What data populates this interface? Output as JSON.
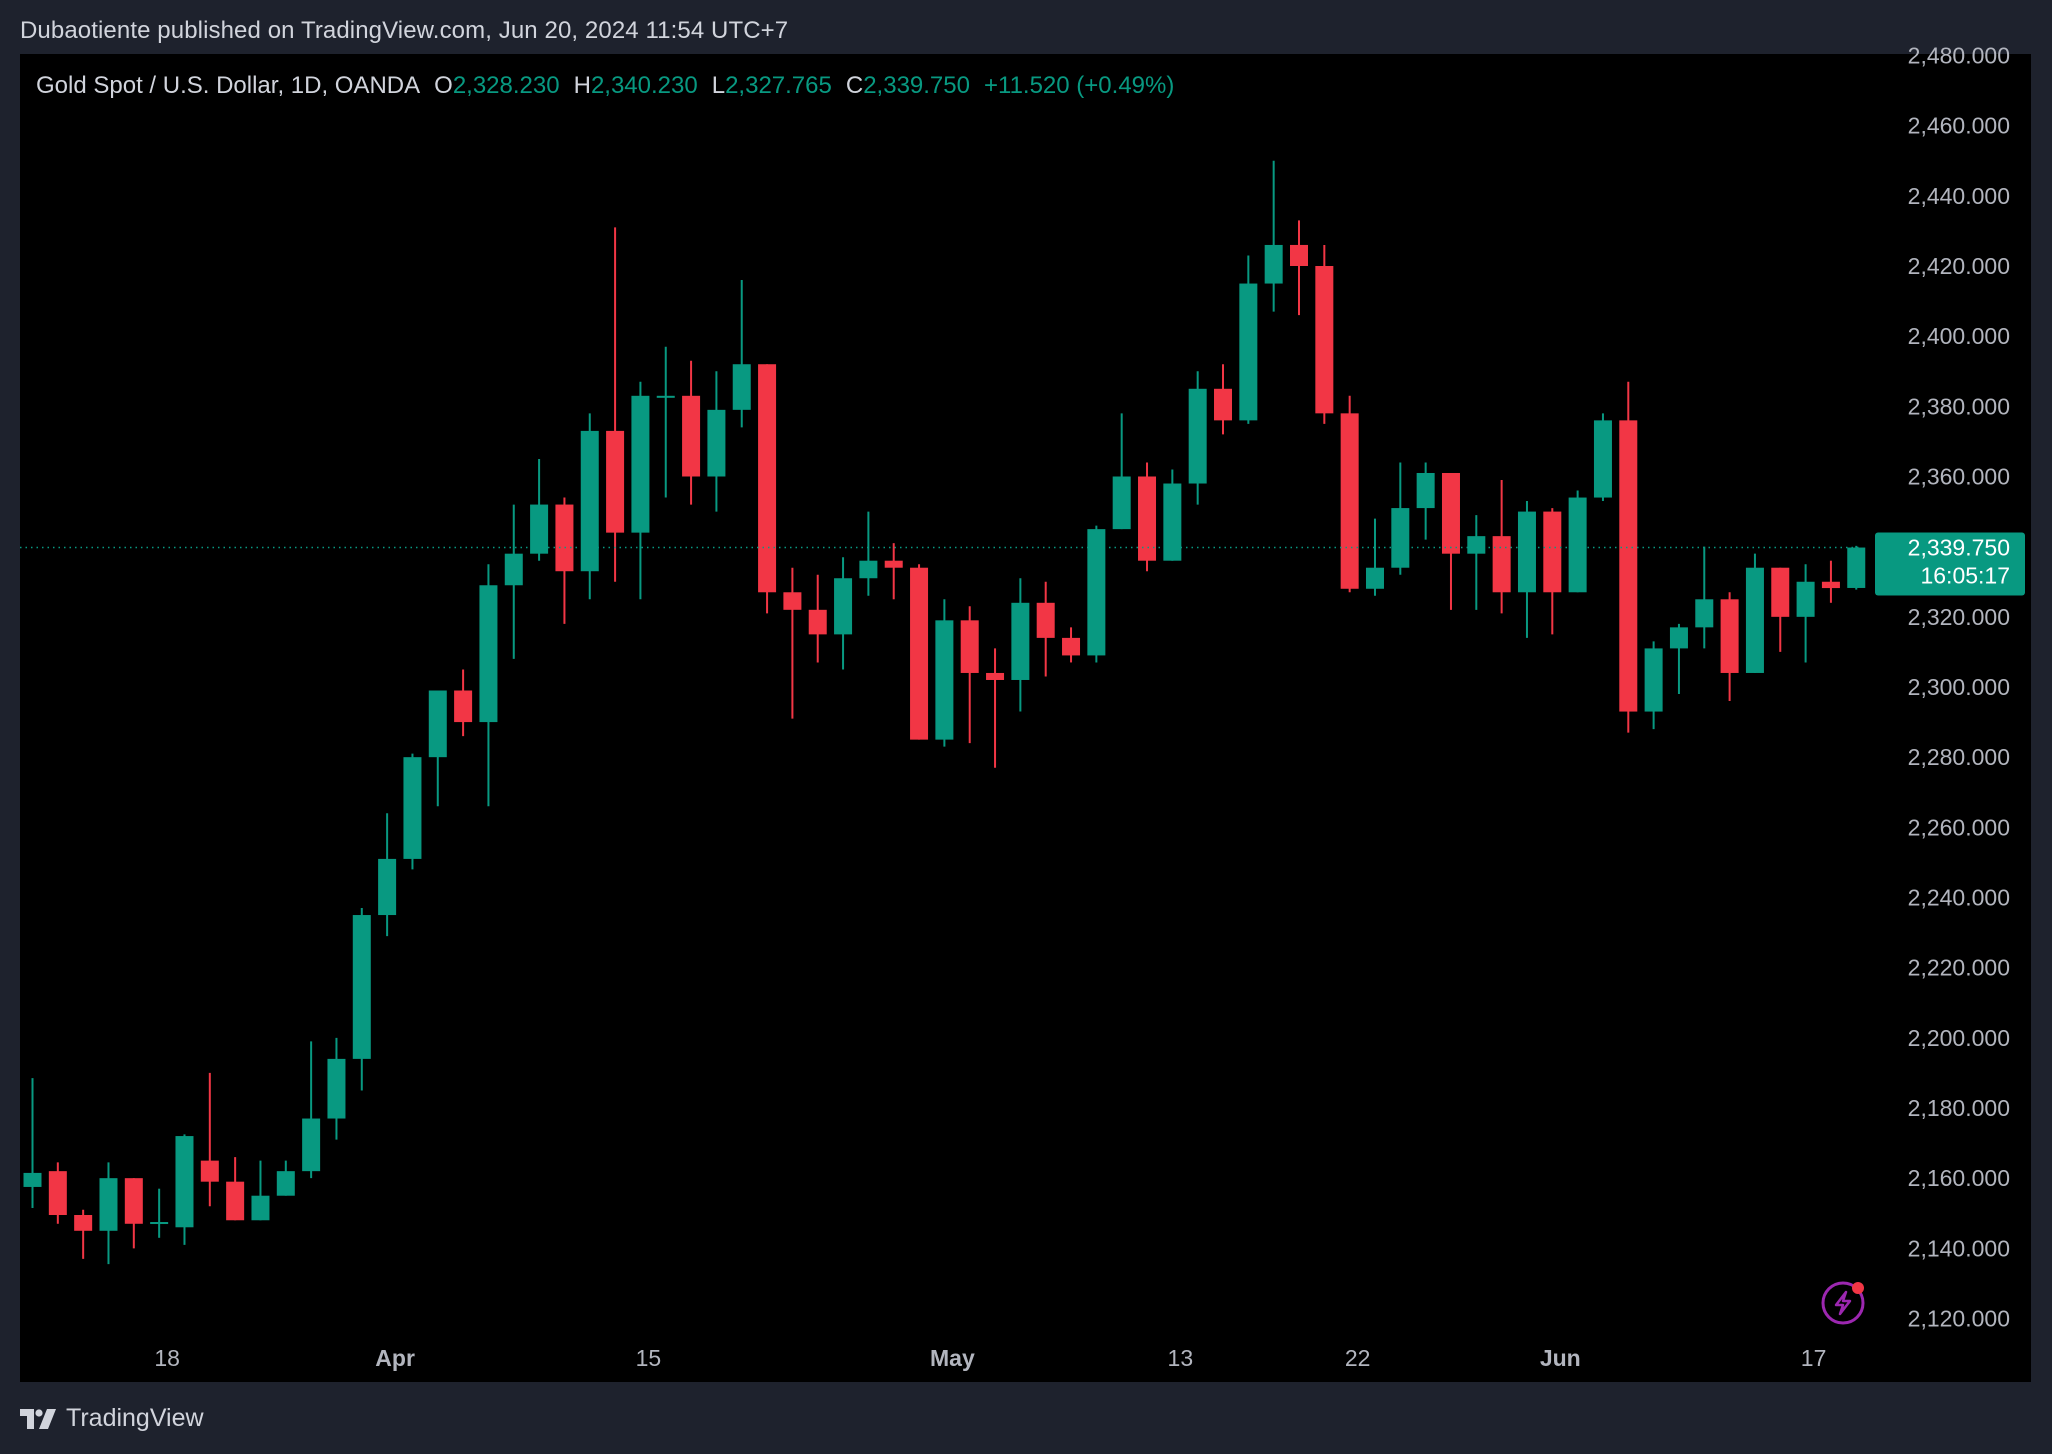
{
  "header": {
    "published_text": "Dubaotiente published on TradingView.com, Jun 20, 2024 11:54 UTC+7"
  },
  "legend": {
    "symbol": "Gold Spot / U.S. Dollar, 1D, OANDA",
    "open_label": "O",
    "open": "2,328.230",
    "high_label": "H",
    "high": "2,340.230",
    "low_label": "L",
    "low": "2,327.765",
    "close_label": "C",
    "close": "2,339.750",
    "change": "+11.520 (+0.49%)"
  },
  "price_tag": {
    "price": "2,339.750",
    "countdown": "16:05:17"
  },
  "footer": {
    "brand": "TradingView"
  },
  "colors": {
    "up": "#089981",
    "down": "#f23645",
    "background": "#000000",
    "frame": "#1e222d",
    "text": "#d1d4dc",
    "axis_text": "#b2b5be"
  },
  "icons": [
    "tradingview-logo-icon",
    "lightning-icon"
  ],
  "chart_data": {
    "type": "candlestick",
    "symbol": "Gold Spot / U.S. Dollar",
    "interval": "1D",
    "ylim": [
      2120,
      2480
    ],
    "y_ticks": [
      2120,
      2140,
      2160,
      2180,
      2200,
      2220,
      2240,
      2260,
      2280,
      2300,
      2320,
      2340,
      2360,
      2380,
      2400,
      2420,
      2440,
      2460,
      2480
    ],
    "y_tick_labels": [
      "2,120.000",
      "2,140.000",
      "2,160.000",
      "2,180.000",
      "2,200.000",
      "2,220.000",
      "2,240.000",
      "2,260.000",
      "2,280.000",
      "2,300.000",
      "2,320.000",
      "2,340.000",
      "2,360.000",
      "2,380.000",
      "2,400.000",
      "2,420.000",
      "2,440.000",
      "2,460.000",
      "2,480.000"
    ],
    "x_tick_labels": [
      {
        "label": "18",
        "index": 5,
        "bold": false
      },
      {
        "label": "Apr",
        "index": 14,
        "bold": true
      },
      {
        "label": "15",
        "index": 24,
        "bold": false
      },
      {
        "label": "May",
        "index": 36,
        "bold": true
      },
      {
        "label": "13",
        "index": 45,
        "bold": false
      },
      {
        "label": "22",
        "index": 52,
        "bold": false
      },
      {
        "label": "Jun",
        "index": 60,
        "bold": true
      },
      {
        "label": "17",
        "index": 70,
        "bold": false
      }
    ],
    "last_price": 2339.75,
    "candles": [
      {
        "o": 2157.5,
        "h": 2188.5,
        "l": 2151.5,
        "c": 2161.5
      },
      {
        "o": 2162,
        "h": 2164.5,
        "l": 2147,
        "c": 2149.5
      },
      {
        "o": 2149.5,
        "h": 2151,
        "l": 2137,
        "c": 2145
      },
      {
        "o": 2145,
        "h": 2164.5,
        "l": 2135.5,
        "c": 2160
      },
      {
        "o": 2160,
        "h": 2160,
        "l": 2140,
        "c": 2147
      },
      {
        "o": 2147,
        "h": 2157,
        "l": 2143,
        "c": 2147.5
      },
      {
        "o": 2146,
        "h": 2172.5,
        "l": 2141,
        "c": 2172
      },
      {
        "o": 2165,
        "h": 2190,
        "l": 2152,
        "c": 2159
      },
      {
        "o": 2159,
        "h": 2166,
        "l": 2148,
        "c": 2148
      },
      {
        "o": 2148,
        "h": 2165,
        "l": 2148,
        "c": 2155
      },
      {
        "o": 2155,
        "h": 2165,
        "l": 2155,
        "c": 2162
      },
      {
        "o": 2162,
        "h": 2199,
        "l": 2160,
        "c": 2177
      },
      {
        "o": 2177,
        "h": 2200,
        "l": 2171,
        "c": 2194
      },
      {
        "o": 2194,
        "h": 2237,
        "l": 2185,
        "c": 2235
      },
      {
        "o": 2235,
        "h": 2264,
        "l": 2229,
        "c": 2251
      },
      {
        "o": 2251,
        "h": 2281,
        "l": 2248,
        "c": 2280
      },
      {
        "o": 2280,
        "h": 2299,
        "l": 2266,
        "c": 2299
      },
      {
        "o": 2299,
        "h": 2305,
        "l": 2286,
        "c": 2290
      },
      {
        "o": 2290,
        "h": 2335,
        "l": 2266,
        "c": 2329
      },
      {
        "o": 2329,
        "h": 2352,
        "l": 2308,
        "c": 2338
      },
      {
        "o": 2338,
        "h": 2365,
        "l": 2336,
        "c": 2352
      },
      {
        "o": 2352,
        "h": 2354,
        "l": 2318,
        "c": 2333
      },
      {
        "o": 2333,
        "h": 2378,
        "l": 2325,
        "c": 2373
      },
      {
        "o": 2373,
        "h": 2431,
        "l": 2330,
        "c": 2344
      },
      {
        "o": 2344,
        "h": 2387,
        "l": 2325,
        "c": 2383
      },
      {
        "o": 2383,
        "h": 2397,
        "l": 2354,
        "c": 2383
      },
      {
        "o": 2383,
        "h": 2393,
        "l": 2352,
        "c": 2360
      },
      {
        "o": 2360,
        "h": 2390,
        "l": 2350,
        "c": 2379
      },
      {
        "o": 2379,
        "h": 2416,
        "l": 2374,
        "c": 2392
      },
      {
        "o": 2392,
        "h": 2392,
        "l": 2321,
        "c": 2327
      },
      {
        "o": 2327,
        "h": 2334,
        "l": 2291,
        "c": 2322
      },
      {
        "o": 2322,
        "h": 2332,
        "l": 2307,
        "c": 2315
      },
      {
        "o": 2315,
        "h": 2337,
        "l": 2305,
        "c": 2331
      },
      {
        "o": 2331,
        "h": 2350,
        "l": 2326,
        "c": 2336
      },
      {
        "o": 2336,
        "h": 2341,
        "l": 2325,
        "c": 2334
      },
      {
        "o": 2334,
        "h": 2335,
        "l": 2285,
        "c": 2285
      },
      {
        "o": 2285,
        "h": 2325,
        "l": 2283,
        "c": 2319
      },
      {
        "o": 2319,
        "h": 2323,
        "l": 2284,
        "c": 2304
      },
      {
        "o": 2304,
        "h": 2311,
        "l": 2277,
        "c": 2302
      },
      {
        "o": 2302,
        "h": 2331,
        "l": 2293,
        "c": 2324
      },
      {
        "o": 2324,
        "h": 2330,
        "l": 2303,
        "c": 2314
      },
      {
        "o": 2314,
        "h": 2317,
        "l": 2307,
        "c": 2309
      },
      {
        "o": 2309,
        "h": 2346,
        "l": 2307,
        "c": 2345
      },
      {
        "o": 2345,
        "h": 2378,
        "l": 2345,
        "c": 2360
      },
      {
        "o": 2360,
        "h": 2364,
        "l": 2333,
        "c": 2336
      },
      {
        "o": 2336,
        "h": 2362,
        "l": 2336,
        "c": 2358
      },
      {
        "o": 2358,
        "h": 2390,
        "l": 2352,
        "c": 2385
      },
      {
        "o": 2385,
        "h": 2392,
        "l": 2372,
        "c": 2376
      },
      {
        "o": 2376,
        "h": 2423,
        "l": 2375,
        "c": 2415
      },
      {
        "o": 2415,
        "h": 2450,
        "l": 2407,
        "c": 2426
      },
      {
        "o": 2426,
        "h": 2433,
        "l": 2406,
        "c": 2420
      },
      {
        "o": 2420,
        "h": 2426,
        "l": 2375,
        "c": 2378
      },
      {
        "o": 2378,
        "h": 2383,
        "l": 2327,
        "c": 2328
      },
      {
        "o": 2328,
        "h": 2348,
        "l": 2326,
        "c": 2334
      },
      {
        "o": 2334,
        "h": 2364,
        "l": 2332,
        "c": 2351
      },
      {
        "o": 2351,
        "h": 2364,
        "l": 2342,
        "c": 2361
      },
      {
        "o": 2361,
        "h": 2361,
        "l": 2322,
        "c": 2338
      },
      {
        "o": 2338,
        "h": 2349,
        "l": 2322,
        "c": 2343
      },
      {
        "o": 2343,
        "h": 2359,
        "l": 2321,
        "c": 2327
      },
      {
        "o": 2327,
        "h": 2353,
        "l": 2314,
        "c": 2350
      },
      {
        "o": 2350,
        "h": 2351,
        "l": 2315,
        "c": 2327
      },
      {
        "o": 2327,
        "h": 2356,
        "l": 2327,
        "c": 2354
      },
      {
        "o": 2354,
        "h": 2378,
        "l": 2353,
        "c": 2376
      },
      {
        "o": 2376,
        "h": 2387,
        "l": 2287,
        "c": 2293
      },
      {
        "o": 2293,
        "h": 2313,
        "l": 2288,
        "c": 2311
      },
      {
        "o": 2311,
        "h": 2318,
        "l": 2298,
        "c": 2317
      },
      {
        "o": 2317,
        "h": 2340,
        "l": 2311,
        "c": 2325
      },
      {
        "o": 2325,
        "h": 2327,
        "l": 2296,
        "c": 2304
      },
      {
        "o": 2304,
        "h": 2338,
        "l": 2304,
        "c": 2334
      },
      {
        "o": 2334,
        "h": 2334,
        "l": 2310,
        "c": 2320
      },
      {
        "o": 2320,
        "h": 2335,
        "l": 2307,
        "c": 2330
      },
      {
        "o": 2330,
        "h": 2336,
        "l": 2324,
        "c": 2328.2
      },
      {
        "o": 2328.23,
        "h": 2340.23,
        "l": 2327.765,
        "c": 2339.75
      }
    ]
  }
}
